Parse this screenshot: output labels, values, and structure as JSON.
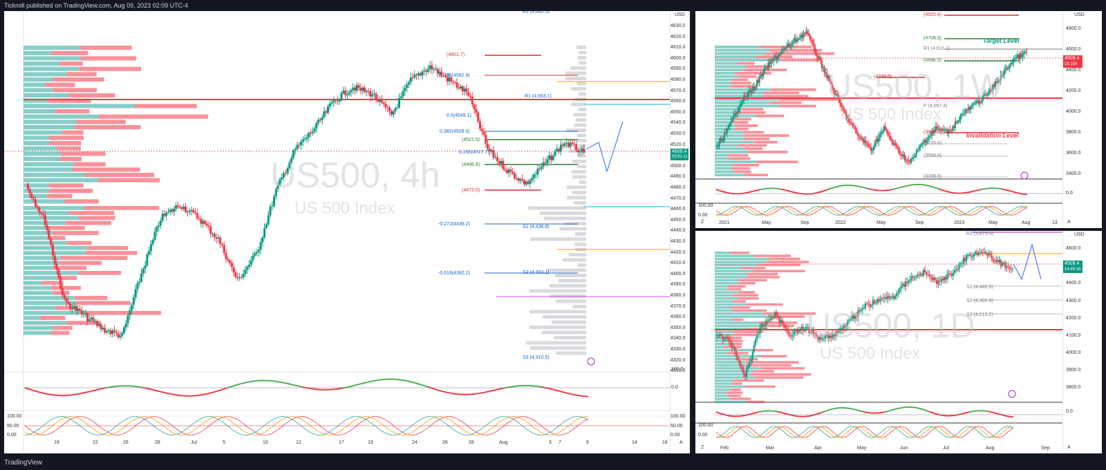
{
  "header": {
    "text": "Tickmill published on TradingView.com, Aug 09, 2023 02:09 UTC-4"
  },
  "footer": {
    "logo_text": "TradingView"
  },
  "colors": {
    "up": "#26a69a",
    "green": "#089981",
    "down": "#f23645",
    "bg": "#131722",
    "panel": "#ffffff"
  },
  "left": {
    "watermark_symbol": "US500, 4h",
    "watermark_desc": "US 500 Index",
    "currency": "USD",
    "price_ticks": [
      "4630.0",
      "4620.0",
      "4610.0",
      "4600.0",
      "4590.0",
      "4580.0",
      "4570.0",
      "4560.0",
      "4550.0",
      "4540.0",
      "4530.0",
      "4520.0",
      "4510.0",
      "4500.0",
      "4490.0",
      "4480.0",
      "4470.0",
      "4460.0",
      "4450.0",
      "4440.0",
      "4430.0",
      "4420.0",
      "4410.0",
      "4400.0",
      "4390.0",
      "4380.0",
      "4370.0",
      "4360.0",
      "4350.0",
      "4340.0",
      "4330.0",
      "4320.0",
      "4310.0"
    ],
    "price_badge": "4509.4",
    "price_badge_sub": "03:51:11",
    "levels": [
      {
        "text": "(4601.7)"
      },
      {
        "text": "0.786(4582.9)"
      },
      {
        "text": "R1 (4,563.1)"
      },
      {
        "text": "0.5(4549.1)"
      },
      {
        "text": "0.382(4528.0)"
      },
      {
        "text": "(4521.5)"
      },
      {
        "text": "0.236(4517.7)"
      },
      {
        "text": "(4496.6)"
      },
      {
        "text": "(4472.0)"
      },
      {
        "text": "-0.272(4439.2)"
      },
      {
        "text": "S1 (4,436.8)"
      },
      {
        "text": "-0.618(4392.2)"
      },
      {
        "text": "S2 (4,393.1)"
      },
      {
        "text": "S3 (4,310.5)"
      },
      {
        "text": "R2 (4,642.5)"
      }
    ],
    "osc_ticks": [
      "100.0",
      "0.0"
    ],
    "stoch_ticks": [
      "100.00",
      "50.00",
      "0.00"
    ],
    "x_ticks": [
      "19",
      "22",
      "26",
      "28",
      "Jul",
      "5",
      "10",
      "12",
      "17",
      "19",
      "24",
      "26",
      "28",
      "Aug",
      "3",
      "7",
      "9",
      "14",
      "16"
    ],
    "axis_corner": "A"
  },
  "topright": {
    "watermark_symbol": "US500, 1W",
    "watermark_desc": "US 500 Index",
    "currency": "USD",
    "price_ticks": [
      "4800.0",
      "4600.0",
      "4400.0",
      "4200.0",
      "4000.0",
      "3800.0",
      "3600.0",
      "3400.0"
    ],
    "price_badge": "4509.4",
    "price_badge_sub": "2d 15h",
    "levels": [
      {
        "text": "(4920.4)"
      },
      {
        "text": "(4708.9)"
      },
      {
        "text": "R1 (4,611.1)"
      },
      {
        "text": "(4496.0)"
      },
      {
        "text": "(4248.0)"
      },
      {
        "text": "P (4,097.4)"
      },
      {
        "text": "(3808.2)"
      },
      {
        "text": "(3725.6)"
      },
      {
        "text": "(3568.8)"
      },
      {
        "text": "(3398.6)"
      }
    ],
    "target_label": "Target Level",
    "invalidation_label": "Invalidation Level",
    "osc_ticks": [
      "0.0"
    ],
    "stoch_ticks": [
      "100.00",
      "0.00"
    ],
    "x_ticks": [
      "2021",
      "May",
      "Sep",
      "2022",
      "May",
      "Sep",
      "2023",
      "May",
      "Aug",
      "13"
    ],
    "axis_corner": "A",
    "axis_left_corner": "Z"
  },
  "bottomright": {
    "watermark_symbol": "US500, 1D",
    "watermark_desc": "US 500 Index",
    "currency": "USD",
    "price_ticks": [
      "4600.0",
      "4500.0",
      "4400.0",
      "4300.0",
      "4200.0",
      "4100.0",
      "4000.0",
      "3900.0",
      "3800.0"
    ],
    "price_badge": "4509.4",
    "price_badge_sub": "14:49:16",
    "levels": [
      {
        "text": "R1 (4,679.4)"
      },
      {
        "text": "S1 (4,442.5)"
      },
      {
        "text": "S2 (4,305.9)"
      },
      {
        "text": "S3 (4,213.2)"
      }
    ],
    "osc_ticks": [
      "0.0"
    ],
    "stoch_ticks": [
      "100.00",
      "0.00"
    ],
    "x_ticks": [
      "Feb",
      "Mar",
      "Apr",
      "May",
      "Jun",
      "Jul",
      "Aug",
      "Sep"
    ],
    "axis_corner": "A",
    "axis_left_corner": "Z"
  }
}
